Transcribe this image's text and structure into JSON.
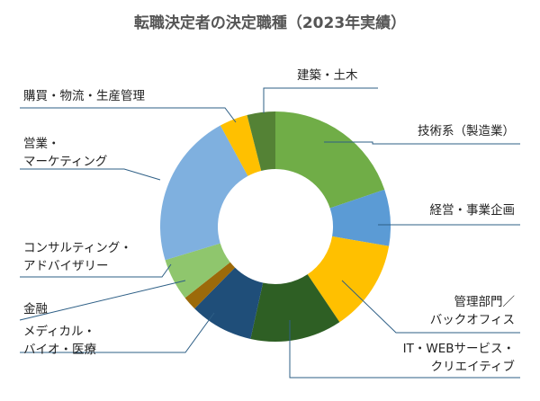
{
  "chart_data": {
    "type": "pie",
    "subtype": "donut",
    "title": "転職決定者の決定職種（2023年実績）",
    "grid": false,
    "legend": "none",
    "slices": [
      {
        "name": "技術系（製造業）",
        "lines": [
          "技術系（製造業）"
        ],
        "value": 20,
        "color": "#70ad47"
      },
      {
        "name": "経営・事業企画",
        "lines": [
          "経営・事業企画"
        ],
        "value": 8,
        "color": "#5b9bd5"
      },
      {
        "name": "管理部門／バックオフィス",
        "lines": [
          "管理部門／",
          "バックオフィス"
        ],
        "value": 13,
        "color": "#ffc000"
      },
      {
        "name": "IT・WEBサービス・クリエイティブ",
        "lines": [
          "IT・WEBサービス・",
          "クリエイティブ"
        ],
        "value": 13,
        "color": "#2e5f24"
      },
      {
        "name": "メディカル・バイオ・医療",
        "lines": [
          "メディカル・",
          "バイオ・医療"
        ],
        "value": 9,
        "color": "#1f4e79"
      },
      {
        "name": "金融",
        "lines": [
          "金融"
        ],
        "value": 2,
        "color": "#9c6a0a"
      },
      {
        "name": "コンサルティング・アドバイザリー",
        "lines": [
          "コンサルティング・",
          "アドバイザリー"
        ],
        "value": 6,
        "color": "#8fc66d"
      },
      {
        "name": "営業・マーケティング",
        "lines": [
          "営業・",
          "マーケティング"
        ],
        "value": 22,
        "color": "#7fb0df"
      },
      {
        "name": "購買・物流・生産管理",
        "lines": [
          "購買・物流・生産管理"
        ],
        "value": 4,
        "color": "#ffc000"
      },
      {
        "name": "建築・土木",
        "lines": [
          "建築・土木"
        ],
        "value": 4,
        "color": "#548235"
      }
    ]
  }
}
